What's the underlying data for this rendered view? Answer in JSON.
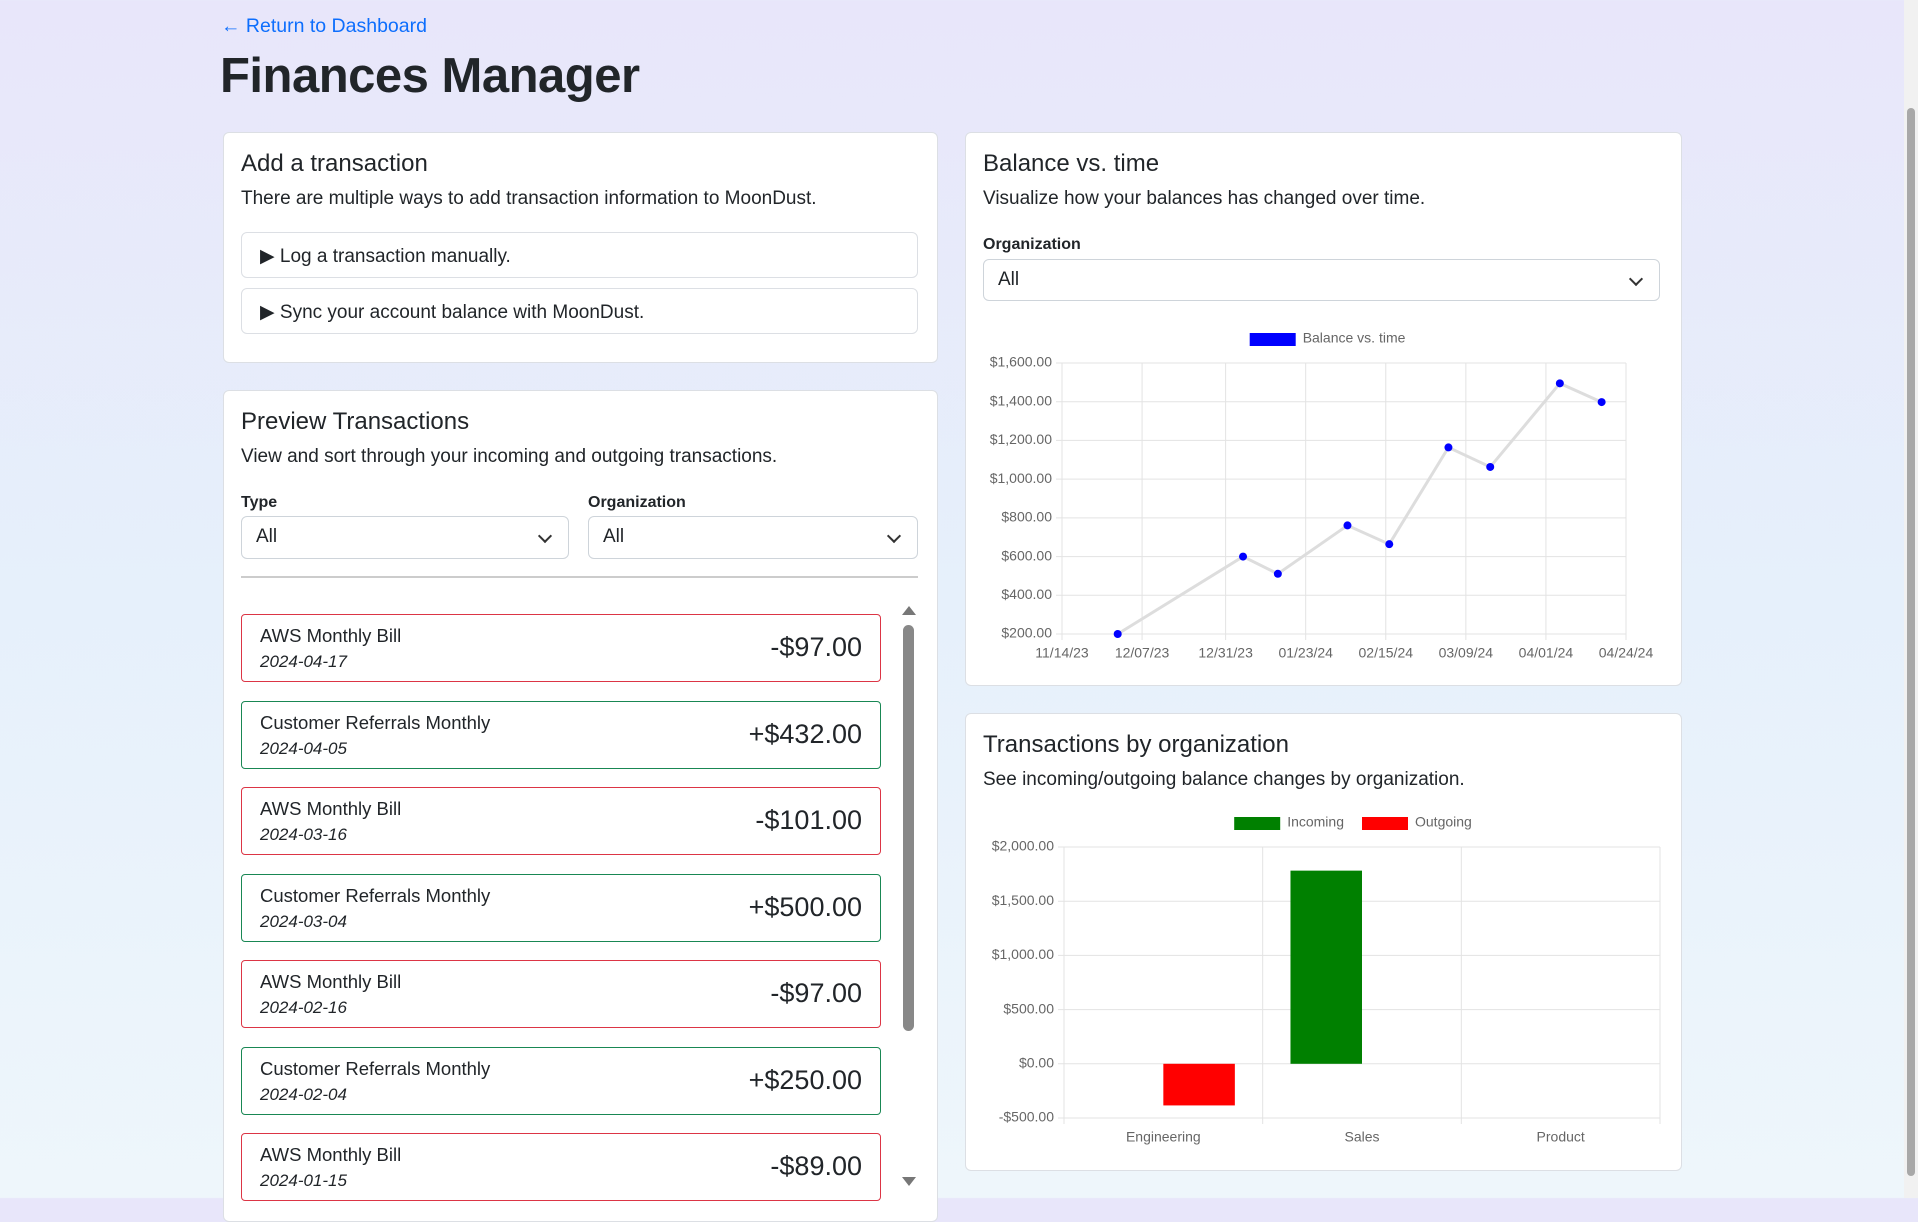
{
  "header": {
    "back_link": "← Return to Dashboard",
    "title": "Finances Manager"
  },
  "add_card": {
    "title": "Add a transaction",
    "description": "There are multiple ways to add transaction information to MoonDust.",
    "options": [
      "Log a transaction manually.",
      "Sync your account balance with MoonDust."
    ]
  },
  "preview": {
    "title": "Preview Transactions",
    "description": "View and sort through your incoming and outgoing transactions.",
    "filters": [
      {
        "label": "Type",
        "value": "All"
      },
      {
        "label": "Organization",
        "value": "All"
      }
    ],
    "transactions": [
      {
        "name": "AWS Monthly Bill",
        "date": "2024-04-17",
        "amount": "-$97.00"
      },
      {
        "name": "Customer Referrals Monthly",
        "date": "2024-04-05",
        "amount": "+$432.00"
      },
      {
        "name": "AWS Monthly Bill",
        "date": "2024-03-16",
        "amount": "-$101.00"
      },
      {
        "name": "Customer Referrals Monthly",
        "date": "2024-03-04",
        "amount": "+$500.00"
      },
      {
        "name": "AWS Monthly Bill",
        "date": "2024-02-16",
        "amount": "-$97.00"
      },
      {
        "name": "Customer Referrals Monthly",
        "date": "2024-02-04",
        "amount": "+$250.00"
      },
      {
        "name": "AWS Monthly Bill",
        "date": "2024-01-15",
        "amount": "-$89.00"
      }
    ]
  },
  "balance_card": {
    "title": "Balance vs. time",
    "description": "Visualize how your balances has changed over time.",
    "filter": {
      "label": "Organization",
      "value": "All"
    }
  },
  "org_card": {
    "title": "Transactions by organization",
    "description": "See incoming/outgoing balance changes by organization."
  },
  "chart_data": [
    {
      "type": "line",
      "x": [
        "2023-11-30",
        "2024-01-05",
        "2024-01-15",
        "2024-02-04",
        "2024-02-16",
        "2024-03-04",
        "2024-03-16",
        "2024-04-05",
        "2024-04-17"
      ],
      "series": [
        {
          "name": "Balance vs. time",
          "color": "#0000ff",
          "line_color": "#dddddd",
          "values": [
            200,
            600,
            511,
            761,
            664,
            1164,
            1063,
            1495,
            1398
          ]
        }
      ],
      "xlim": [
        "2023-11-14",
        "2024-04-24"
      ],
      "xticks": [
        {
          "value": "2023-11-14",
          "label": "11/14/23"
        },
        {
          "value": "2023-12-07",
          "label": "12/07/23"
        },
        {
          "value": "2023-12-31",
          "label": "12/31/23"
        },
        {
          "value": "2024-01-23",
          "label": "01/23/24"
        },
        {
          "value": "2024-02-15",
          "label": "02/15/24"
        },
        {
          "value": "2024-03-09",
          "label": "03/09/24"
        },
        {
          "value": "2024-04-01",
          "label": "04/01/24"
        },
        {
          "value": "2024-04-24",
          "label": "04/24/24"
        }
      ],
      "ylim": [
        200,
        1600
      ],
      "yticks": [
        {
          "value": 200,
          "label": "$200.00"
        },
        {
          "value": 400,
          "label": "$400.00"
        },
        {
          "value": 600,
          "label": "$600.00"
        },
        {
          "value": 800,
          "label": "$800.00"
        },
        {
          "value": 1000,
          "label": "$1,000.00"
        },
        {
          "value": 1200,
          "label": "$1,200.00"
        },
        {
          "value": 1400,
          "label": "$1,400.00"
        },
        {
          "value": 1600,
          "label": "$1,600.00"
        }
      ],
      "grid": true
    },
    {
      "type": "bar",
      "categories": [
        "Engineering",
        "Sales",
        "Product"
      ],
      "series": [
        {
          "name": "Incoming",
          "color": "#008000",
          "values": [
            null,
            1782,
            null
          ]
        },
        {
          "name": "Outgoing",
          "color": "#ff0000",
          "values": [
            -384,
            null,
            null
          ]
        }
      ],
      "ylim": [
        -500,
        2000
      ],
      "yticks": [
        {
          "value": -500,
          "label": "-$500.00"
        },
        {
          "value": 0,
          "label": "$0.00"
        },
        {
          "value": 500,
          "label": "$500.00"
        },
        {
          "value": 1000,
          "label": "$1,000.00"
        },
        {
          "value": 1500,
          "label": "$1,500.00"
        },
        {
          "value": 2000,
          "label": "$2,000.00"
        }
      ],
      "grid": true
    }
  ]
}
